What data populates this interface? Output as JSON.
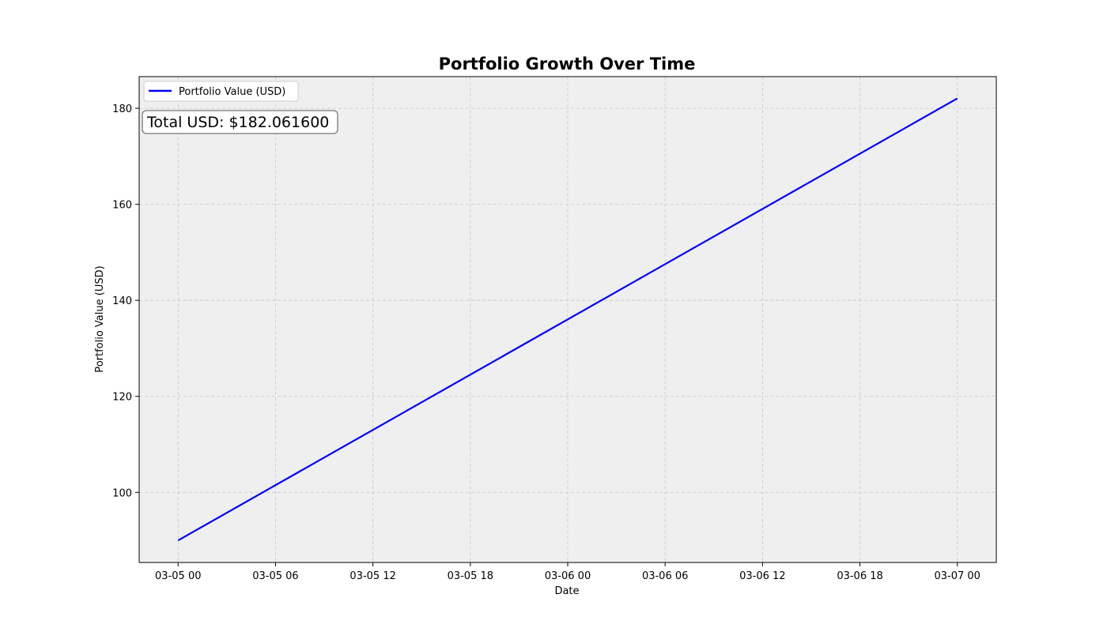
{
  "chart_data": {
    "type": "line",
    "title": "Portfolio Growth Over Time",
    "xlabel": "Date",
    "ylabel": "Portfolio Value (USD)",
    "x_tick_labels": [
      "03-05 00",
      "03-05 06",
      "03-05 12",
      "03-05 18",
      "03-06 00",
      "03-06 06",
      "03-06 12",
      "03-06 18",
      "03-07 00"
    ],
    "y_ticks": [
      100,
      120,
      140,
      160,
      180
    ],
    "xlim": [
      "2024-03-04T21:36",
      "2024-03-07T02:24"
    ],
    "ylim": [
      85.4,
      186.6
    ],
    "grid": true,
    "grid_style": "dashed",
    "plot_background": "#efefef",
    "legend_position": "top-left",
    "series": [
      {
        "name": "Portfolio Value (USD)",
        "color": "#0000ff",
        "x": [
          "2024-03-05T00:00",
          "2024-03-07T00:00"
        ],
        "y": [
          90.0,
          182.0616
        ]
      }
    ],
    "annotation": "Total USD: $182.061600"
  }
}
